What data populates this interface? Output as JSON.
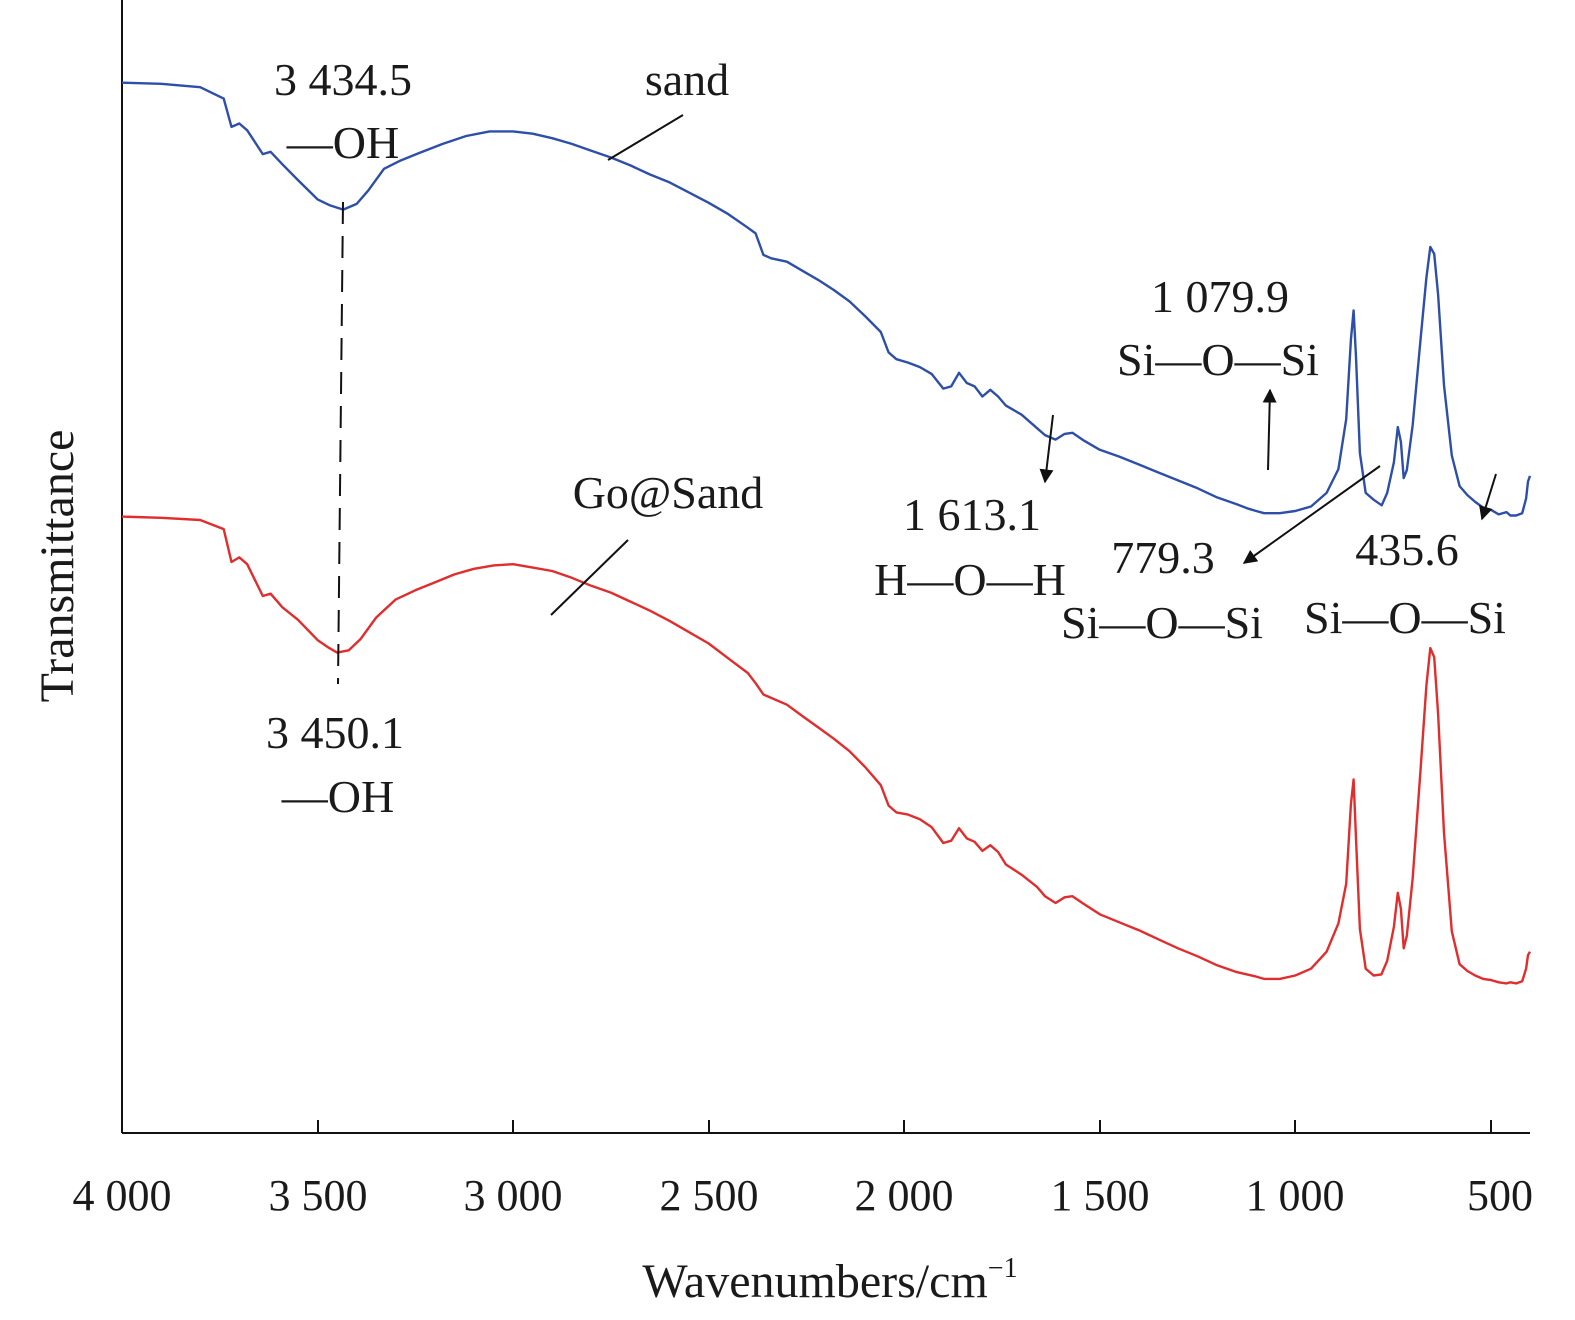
{
  "chart_data": {
    "type": "line",
    "title": "",
    "xlabel": "Wavenumbers/cm",
    "xlabel_superscript": "−1",
    "ylabel": "Transmittance",
    "xlim": [
      4000,
      400
    ],
    "ylim": [
      0,
      100
    ],
    "x_reversed": true,
    "x_ticks": [
      4000,
      3500,
      3000,
      2500,
      2000,
      1500,
      1000,
      500
    ],
    "x_tick_labels": [
      "4 000",
      "3 500",
      "3 000",
      "2 500",
      "2 000",
      "1 500",
      "1 000",
      "500"
    ],
    "legend": "none",
    "grid": false,
    "series": [
      {
        "name": "sand",
        "color": "#2e4fa8",
        "points": [
          [
            4000,
            92.7
          ],
          [
            3900,
            92.6
          ],
          [
            3800,
            92.3
          ],
          [
            3740,
            91.3
          ],
          [
            3720,
            88.8
          ],
          [
            3700,
            89.1
          ],
          [
            3680,
            88.5
          ],
          [
            3640,
            86.4
          ],
          [
            3620,
            86.6
          ],
          [
            3590,
            85.5
          ],
          [
            3550,
            84.1
          ],
          [
            3500,
            82.4
          ],
          [
            3470,
            81.9
          ],
          [
            3434.5,
            81.5
          ],
          [
            3400,
            82.0
          ],
          [
            3370,
            83.2
          ],
          [
            3330,
            85.1
          ],
          [
            3290,
            85.8
          ],
          [
            3240,
            86.5
          ],
          [
            3180,
            87.3
          ],
          [
            3120,
            88.0
          ],
          [
            3060,
            88.4
          ],
          [
            3000,
            88.4
          ],
          [
            2950,
            88.2
          ],
          [
            2900,
            87.8
          ],
          [
            2850,
            87.3
          ],
          [
            2800,
            86.7
          ],
          [
            2750,
            86.1
          ],
          [
            2700,
            85.4
          ],
          [
            2650,
            84.6
          ],
          [
            2600,
            83.9
          ],
          [
            2550,
            83.0
          ],
          [
            2500,
            82.1
          ],
          [
            2450,
            81.1
          ],
          [
            2400,
            79.9
          ],
          [
            2380,
            79.4
          ],
          [
            2360,
            77.5
          ],
          [
            2340,
            77.2
          ],
          [
            2300,
            76.9
          ],
          [
            2260,
            76.1
          ],
          [
            2220,
            75.3
          ],
          [
            2180,
            74.4
          ],
          [
            2140,
            73.4
          ],
          [
            2100,
            72.1
          ],
          [
            2060,
            70.7
          ],
          [
            2040,
            68.9
          ],
          [
            2020,
            68.3
          ],
          [
            1990,
            68.0
          ],
          [
            1960,
            67.6
          ],
          [
            1930,
            67.0
          ],
          [
            1900,
            65.7
          ],
          [
            1880,
            65.9
          ],
          [
            1860,
            67.1
          ],
          [
            1840,
            66.2
          ],
          [
            1820,
            65.9
          ],
          [
            1800,
            65.0
          ],
          [
            1780,
            65.6
          ],
          [
            1760,
            65.0
          ],
          [
            1740,
            64.2
          ],
          [
            1700,
            63.4
          ],
          [
            1660,
            62.2
          ],
          [
            1640,
            61.6
          ],
          [
            1613.1,
            61.2
          ],
          [
            1590,
            61.7
          ],
          [
            1570,
            61.8
          ],
          [
            1540,
            61.1
          ],
          [
            1500,
            60.3
          ],
          [
            1450,
            59.7
          ],
          [
            1400,
            59.0
          ],
          [
            1350,
            58.3
          ],
          [
            1300,
            57.6
          ],
          [
            1250,
            56.9
          ],
          [
            1200,
            56.1
          ],
          [
            1150,
            55.5
          ],
          [
            1120,
            55.1
          ],
          [
            1100,
            54.9
          ],
          [
            1079.9,
            54.7
          ],
          [
            1040,
            54.7
          ],
          [
            1000,
            54.9
          ],
          [
            960,
            55.3
          ],
          [
            920,
            56.5
          ],
          [
            890,
            58.6
          ],
          [
            870,
            63.0
          ],
          [
            858,
            70.0
          ],
          [
            851,
            72.6
          ],
          [
            845,
            68.5
          ],
          [
            835,
            60.0
          ],
          [
            820,
            56.5
          ],
          [
            800,
            55.9
          ],
          [
            779.3,
            55.4
          ],
          [
            765,
            56.5
          ],
          [
            748,
            59.2
          ],
          [
            738,
            62.3
          ],
          [
            730,
            61.0
          ],
          [
            723,
            57.8
          ],
          [
            715,
            58.5
          ],
          [
            700,
            62.5
          ],
          [
            680,
            70.0
          ],
          [
            665,
            75.5
          ],
          [
            655,
            78.2
          ],
          [
            645,
            77.6
          ],
          [
            635,
            74.0
          ],
          [
            620,
            66.0
          ],
          [
            600,
            59.8
          ],
          [
            580,
            57.1
          ],
          [
            560,
            56.3
          ],
          [
            540,
            55.7
          ],
          [
            520,
            55.2
          ],
          [
            500,
            55.0
          ],
          [
            480,
            54.6
          ],
          [
            460,
            54.8
          ],
          [
            450,
            54.5
          ],
          [
            435.6,
            54.5
          ],
          [
            420,
            54.7
          ],
          [
            410,
            56.0
          ],
          [
            405,
            57.5
          ],
          [
            400,
            58.0
          ]
        ]
      },
      {
        "name": "Go@Sand",
        "color": "#e02d2d",
        "points": [
          [
            4000,
            54.4
          ],
          [
            3900,
            54.3
          ],
          [
            3800,
            54.1
          ],
          [
            3740,
            53.3
          ],
          [
            3720,
            50.4
          ],
          [
            3700,
            50.8
          ],
          [
            3680,
            50.2
          ],
          [
            3640,
            47.4
          ],
          [
            3620,
            47.6
          ],
          [
            3590,
            46.4
          ],
          [
            3550,
            45.3
          ],
          [
            3500,
            43.5
          ],
          [
            3470,
            42.8
          ],
          [
            3450.1,
            42.4
          ],
          [
            3420,
            42.6
          ],
          [
            3390,
            43.6
          ],
          [
            3350,
            45.5
          ],
          [
            3300,
            47.1
          ],
          [
            3250,
            47.9
          ],
          [
            3200,
            48.6
          ],
          [
            3150,
            49.3
          ],
          [
            3100,
            49.8
          ],
          [
            3050,
            50.1
          ],
          [
            3000,
            50.2
          ],
          [
            2950,
            49.9
          ],
          [
            2900,
            49.6
          ],
          [
            2850,
            49.0
          ],
          [
            2800,
            48.3
          ],
          [
            2750,
            47.7
          ],
          [
            2700,
            46.9
          ],
          [
            2650,
            46.1
          ],
          [
            2600,
            45.2
          ],
          [
            2550,
            44.2
          ],
          [
            2500,
            43.2
          ],
          [
            2450,
            41.9
          ],
          [
            2400,
            40.6
          ],
          [
            2380,
            39.7
          ],
          [
            2360,
            38.7
          ],
          [
            2340,
            38.4
          ],
          [
            2300,
            37.8
          ],
          [
            2260,
            36.8
          ],
          [
            2220,
            35.8
          ],
          [
            2180,
            34.8
          ],
          [
            2140,
            33.7
          ],
          [
            2100,
            32.3
          ],
          [
            2060,
            30.7
          ],
          [
            2040,
            28.9
          ],
          [
            2020,
            28.3
          ],
          [
            1990,
            28.1
          ],
          [
            1960,
            27.7
          ],
          [
            1930,
            27.0
          ],
          [
            1900,
            25.6
          ],
          [
            1880,
            25.8
          ],
          [
            1860,
            26.9
          ],
          [
            1840,
            26.0
          ],
          [
            1820,
            25.7
          ],
          [
            1800,
            24.9
          ],
          [
            1780,
            25.4
          ],
          [
            1760,
            24.8
          ],
          [
            1740,
            23.7
          ],
          [
            1700,
            22.8
          ],
          [
            1660,
            21.7
          ],
          [
            1640,
            20.9
          ],
          [
            1613,
            20.3
          ],
          [
            1590,
            20.8
          ],
          [
            1570,
            20.9
          ],
          [
            1540,
            20.2
          ],
          [
            1500,
            19.3
          ],
          [
            1450,
            18.6
          ],
          [
            1400,
            17.9
          ],
          [
            1350,
            17.1
          ],
          [
            1300,
            16.3
          ],
          [
            1250,
            15.6
          ],
          [
            1200,
            14.8
          ],
          [
            1150,
            14.2
          ],
          [
            1100,
            13.8
          ],
          [
            1080,
            13.6
          ],
          [
            1040,
            13.6
          ],
          [
            1000,
            13.9
          ],
          [
            960,
            14.5
          ],
          [
            920,
            16.0
          ],
          [
            890,
            18.5
          ],
          [
            870,
            22.0
          ],
          [
            858,
            29.0
          ],
          [
            851,
            31.2
          ],
          [
            845,
            26.0
          ],
          [
            835,
            18.0
          ],
          [
            820,
            14.5
          ],
          [
            800,
            13.9
          ],
          [
            780,
            14.0
          ],
          [
            765,
            15.2
          ],
          [
            748,
            18.2
          ],
          [
            738,
            21.2
          ],
          [
            730,
            19.8
          ],
          [
            723,
            16.3
          ],
          [
            715,
            17.4
          ],
          [
            700,
            22.5
          ],
          [
            680,
            32.0
          ],
          [
            665,
            39.5
          ],
          [
            655,
            42.8
          ],
          [
            645,
            42.0
          ],
          [
            635,
            37.0
          ],
          [
            620,
            26.5
          ],
          [
            600,
            17.8
          ],
          [
            580,
            14.9
          ],
          [
            560,
            14.3
          ],
          [
            540,
            13.9
          ],
          [
            520,
            13.6
          ],
          [
            500,
            13.5
          ],
          [
            480,
            13.3
          ],
          [
            460,
            13.2
          ],
          [
            450,
            13.3
          ],
          [
            435,
            13.2
          ],
          [
            420,
            13.4
          ],
          [
            410,
            14.5
          ],
          [
            405,
            15.7
          ],
          [
            400,
            16.0
          ]
        ]
      }
    ],
    "annotations": [
      {
        "id": "sand-oh-wn",
        "text": "3 434.5",
        "group": "sand"
      },
      {
        "id": "sand-oh",
        "text": "—OH",
        "group": "sand"
      },
      {
        "id": "sand-label",
        "text": "sand",
        "group": "sand"
      },
      {
        "id": "sand-sio-wn",
        "text": "1 079.9",
        "group": "sand"
      },
      {
        "id": "sand-sio",
        "text": "Si—O—Si",
        "group": "sand"
      },
      {
        "id": "sand-hoh-wn",
        "text": "1 613.1",
        "group": "sand"
      },
      {
        "id": "sand-hoh",
        "text": "H—O—H",
        "group": "sand"
      },
      {
        "id": "sand-779-wn",
        "text": "779.3",
        "group": "sand"
      },
      {
        "id": "sand-779",
        "text": "Si—O—Si",
        "group": "sand"
      },
      {
        "id": "sand-435-wn",
        "text": "435.6",
        "group": "sand"
      },
      {
        "id": "sand-435",
        "text": "Si—O—Si",
        "group": "sand"
      },
      {
        "id": "go-label",
        "text": "Go@Sand",
        "group": "Go@Sand"
      },
      {
        "id": "go-oh-wn",
        "text": "3 450.1",
        "group": "Go@Sand"
      },
      {
        "id": "go-oh",
        "text": "—OH",
        "group": "Go@Sand"
      }
    ]
  }
}
